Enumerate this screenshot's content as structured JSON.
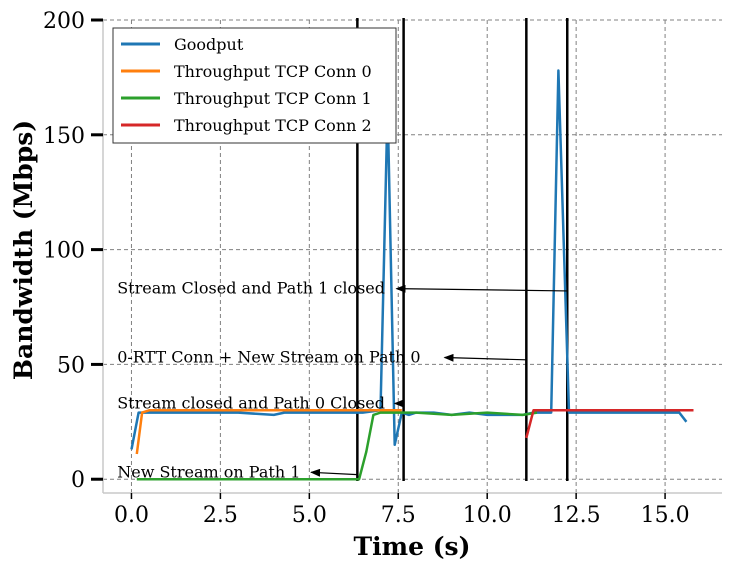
{
  "chart_data": {
    "type": "line",
    "title": "",
    "xlabel": "Time (s)",
    "ylabel": "Bandwidth (Mbps)",
    "xlim": [
      -0.8,
      16.6
    ],
    "ylim": [
      -6,
      200
    ],
    "xticks": [
      0.0,
      2.5,
      5.0,
      7.5,
      10.0,
      12.5,
      15.0
    ],
    "xtick_labels": [
      "0.0",
      "2.5",
      "5.0",
      "7.5",
      "10.0",
      "12.5",
      "15.0"
    ],
    "yticks": [
      0,
      50,
      100,
      150,
      200
    ],
    "ytick_labels": [
      "0",
      "50",
      "100",
      "150",
      "200"
    ],
    "grid": true,
    "legend_position": "top-left",
    "series": [
      {
        "name": "Goodput",
        "color": "#1f77b4",
        "x": [
          0.0,
          0.2,
          0.5,
          1.0,
          2.0,
          3.0,
          4.0,
          4.3,
          5.0,
          6.0,
          6.5,
          7.0,
          7.2,
          7.4,
          7.6,
          7.8,
          8.0,
          8.5,
          9.0,
          9.5,
          10.0,
          10.5,
          11.0,
          11.3,
          11.5,
          11.7,
          11.8,
          12.0,
          12.3,
          12.5,
          13.0,
          13.5,
          14.0,
          14.5,
          15.0,
          15.4,
          15.6
        ],
        "y": [
          13,
          29,
          29,
          29,
          29,
          29,
          28,
          29,
          29,
          29,
          29,
          30,
          163,
          15,
          29,
          28,
          29,
          29,
          28,
          29,
          28,
          28,
          28,
          29,
          29,
          29,
          29,
          178,
          29,
          29,
          29,
          29,
          29,
          29,
          29,
          29,
          25
        ]
      },
      {
        "name": "Throughput TCP Conn 0",
        "color": "#ff7f0e",
        "x": [
          0.15,
          0.3,
          0.5,
          1.0,
          2.0,
          3.0,
          4.0,
          5.0,
          6.0,
          7.0,
          7.4,
          7.6
        ],
        "y": [
          11,
          29,
          30,
          30,
          30,
          30,
          30,
          30,
          30,
          30,
          30,
          30
        ]
      },
      {
        "name": "Throughput TCP Conn 1",
        "color": "#2ca02c",
        "x": [
          0.15,
          1.0,
          2.0,
          3.0,
          4.0,
          5.0,
          6.0,
          6.4,
          6.6,
          6.8,
          7.0,
          7.5,
          8.0,
          9.0,
          10.0,
          11.0,
          11.4
        ],
        "y": [
          0,
          0,
          0,
          0,
          0,
          0,
          0,
          0,
          12,
          28,
          29,
          29,
          29,
          28,
          29,
          28,
          29
        ]
      },
      {
        "name": "Throughput TCP Conn 2",
        "color": "#d62728",
        "x": [
          11.1,
          11.3,
          11.5,
          12.0,
          13.0,
          14.0,
          14.5,
          15.0,
          15.8
        ],
        "y": [
          18,
          30,
          30,
          30,
          30,
          30,
          30,
          30,
          30
        ]
      }
    ],
    "vlines": [
      6.35,
      7.65,
      11.1,
      12.25
    ],
    "annotations": [
      {
        "text": "Stream Closed and Path 1 closed",
        "text_x": -0.4,
        "text_y": 83,
        "arrow_from": [
          12.25,
          82
        ],
        "arrow_to": [
          7.45,
          83
        ]
      },
      {
        "text": "0-RTT Conn + New Stream on Path 0",
        "text_x": -0.4,
        "text_y": 53,
        "arrow_from": [
          11.1,
          52
        ],
        "arrow_to": [
          8.8,
          53
        ]
      },
      {
        "text": "Stream closed and Path 0 Closed",
        "text_x": -0.4,
        "text_y": 33,
        "arrow_from": [
          7.6,
          33
        ],
        "arrow_to": [
          7.4,
          33
        ]
      },
      {
        "text": "New Stream on Path 1",
        "text_x": -0.4,
        "text_y": 3,
        "arrow_from": [
          6.35,
          2
        ],
        "arrow_to": [
          5.05,
          3
        ]
      }
    ]
  }
}
